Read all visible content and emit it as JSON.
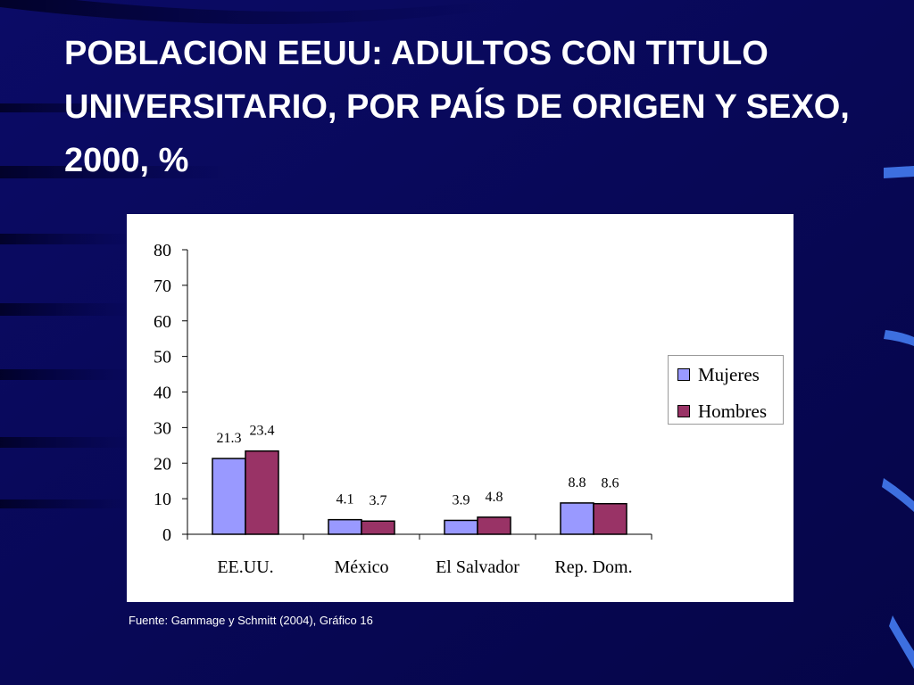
{
  "slide": {
    "title": "POBLACION EEUU: ADULTOS CON TITULO UNIVERSITARIO, POR PAÍS DE ORIGEN Y SEXO, 2000, %",
    "source": "Fuente: Gammage y Schmitt (2004), Gráfico 16"
  },
  "colors": {
    "background": "#0a0a5e",
    "mujeres": "#9999ff",
    "hombres": "#993366"
  },
  "chart_data": {
    "type": "bar",
    "categories": [
      "EE.UU.",
      "México",
      "El Salvador",
      "Rep. Dom."
    ],
    "series": [
      {
        "name": "Mujeres",
        "values": [
          21.3,
          4.1,
          3.9,
          8.8
        ],
        "color": "#9999ff"
      },
      {
        "name": "Hombres",
        "values": [
          23.4,
          3.7,
          4.8,
          8.6
        ],
        "color": "#993366"
      }
    ],
    "ylim": [
      0,
      80
    ],
    "yticks": [
      0,
      10,
      20,
      30,
      40,
      50,
      60,
      70,
      80
    ],
    "xlabel": "",
    "ylabel": "",
    "grid": false,
    "legend_position": "right"
  }
}
